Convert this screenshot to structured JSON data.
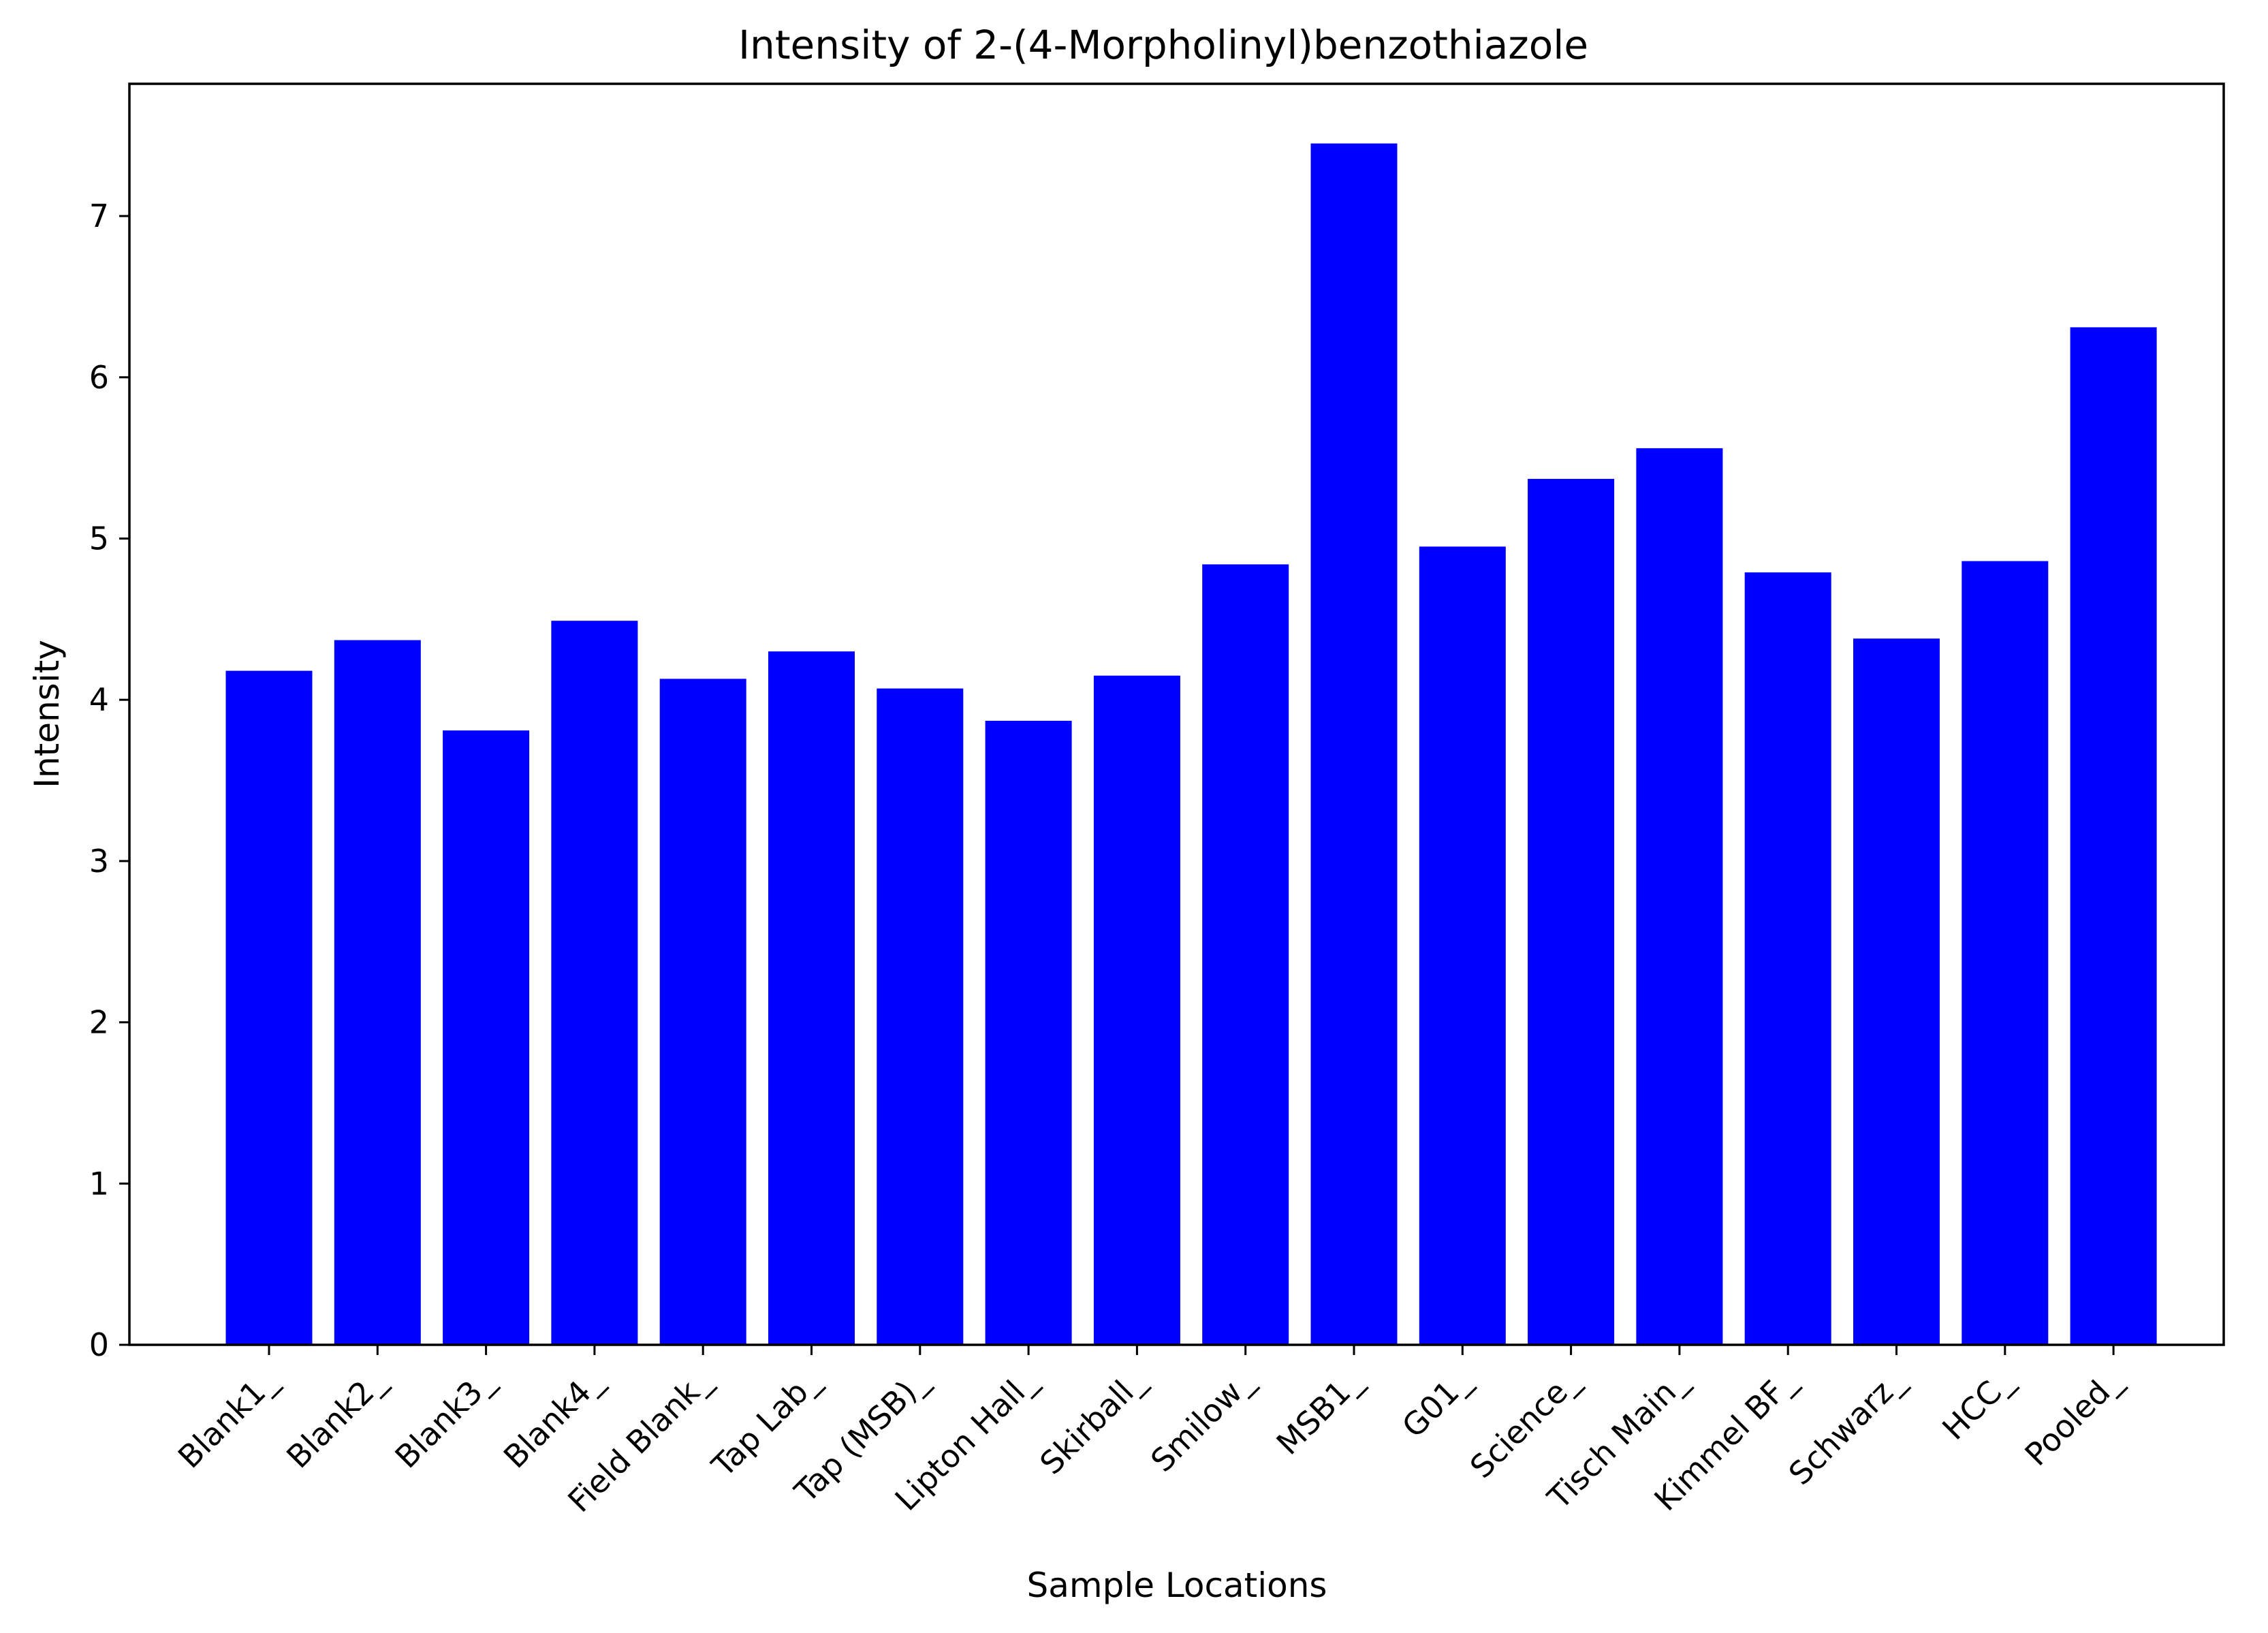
{
  "chart_data": {
    "type": "bar",
    "title": "Intensity of 2-(4-Morpholinyl)benzothiazole",
    "xlabel": "Sample Locations",
    "ylabel": "Intensity",
    "categories": [
      "Blank1_",
      "Blank2_",
      "Blank3_",
      "Blank4_",
      "Field Blank_",
      "Tap Lab_",
      "Tap (MSB)_",
      "Lipton Hall_",
      "Skirball_",
      "Smilow_",
      "MSB1_",
      "G01_",
      "Science_",
      "Tisch Main_",
      "Kimmel BF_",
      "Schwarz_",
      "HCC_",
      "Pooled_"
    ],
    "values": [
      4.18,
      4.37,
      3.81,
      4.49,
      4.13,
      4.3,
      4.07,
      3.87,
      4.15,
      4.84,
      7.45,
      4.95,
      5.37,
      5.56,
      4.79,
      4.38,
      4.86,
      6.31
    ],
    "yticks": [
      0,
      1,
      2,
      3,
      4,
      5,
      6,
      7
    ],
    "ylim": [
      0,
      7.82
    ],
    "bar_color": "#0000ff",
    "grid": false,
    "legend": "none"
  }
}
